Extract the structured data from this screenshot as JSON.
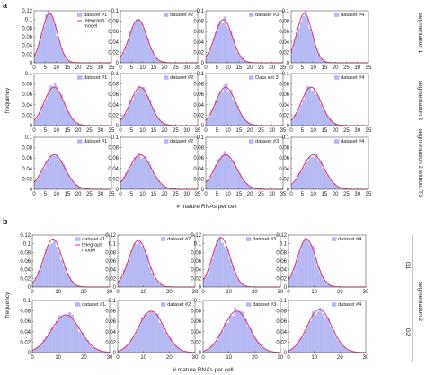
{
  "figure": {
    "panel_a_letter": "a",
    "panel_b_letter": "b",
    "ylabel": "frequency",
    "xlabel": "# mature RNAs per cell",
    "legend_model": "telegraph model",
    "legend_model_line1": "telegraph",
    "legend_model_line2": "model",
    "row_labels_a": [
      "segmentation 1",
      "segmentation 2",
      "segmentation 2 without TS"
    ],
    "row_labels_b": [
      "G1",
      "G2"
    ],
    "group_label_b": "segmentation 2",
    "colors": {
      "bars": "#b7b9f5",
      "bar_edge": "#9ea2ee",
      "model": "#d83a6c",
      "text": "#222222"
    }
  },
  "chart_data": {
    "type": "bar",
    "panels": [
      {
        "panel": "a",
        "row": 0,
        "col": 0,
        "label": "dataset #1",
        "mean": 7,
        "sd": 3.5,
        "ylim": [
          0,
          0.12
        ],
        "yticks": [
          "0",
          "0.02",
          "0.04",
          "0.06",
          "0.08",
          "0.1",
          "0.12"
        ],
        "show_model_legend": true
      },
      {
        "panel": "a",
        "row": 0,
        "col": 1,
        "label": "dataset #2",
        "mean": 8,
        "sd": 4,
        "ylim": [
          0,
          0.12
        ],
        "yticks": [
          "0",
          "0.02",
          "0.04",
          "0.06",
          "0.08",
          "0.1"
        ],
        "show_model_legend": false
      },
      {
        "panel": "a",
        "row": 0,
        "col": 2,
        "label": "dataset #3",
        "mean": 8,
        "sd": 4,
        "ylim": [
          0,
          0.12
        ],
        "yticks": [
          "0",
          "0.02",
          "0.04",
          "0.06",
          "0.08",
          "0.1"
        ],
        "show_model_legend": false
      },
      {
        "panel": "a",
        "row": 0,
        "col": 3,
        "label": "dataset #4",
        "mean": 6,
        "sd": 3.5,
        "ylim": [
          0,
          0.12
        ],
        "yticks": [
          "0",
          "0.02",
          "0.04",
          "0.06",
          "0.08",
          "0.1"
        ],
        "show_model_legend": false
      },
      {
        "panel": "a",
        "row": 1,
        "col": 0,
        "label": "dataset #1",
        "mean": 9,
        "sd": 4.5,
        "ylim": [
          0,
          0.12
        ],
        "yticks": [
          "0",
          "0.02",
          "0.04",
          "0.06",
          "0.08",
          "0.1"
        ],
        "show_model_legend": false
      },
      {
        "panel": "a",
        "row": 1,
        "col": 1,
        "label": "dataset #2",
        "mean": 9,
        "sd": 4.5,
        "ylim": [
          0,
          0.12
        ],
        "yticks": [
          "0",
          "0.02",
          "0.04",
          "0.06",
          "0.08",
          "0.1"
        ],
        "show_model_legend": false
      },
      {
        "panel": "a",
        "row": 1,
        "col": 2,
        "label": "Data set 3",
        "mean": 9,
        "sd": 4.5,
        "ylim": [
          0,
          0.12
        ],
        "yticks": [
          "0",
          "0.02",
          "0.04",
          "0.06",
          "0.08",
          "0.1"
        ],
        "show_model_legend": false
      },
      {
        "panel": "a",
        "row": 1,
        "col": 3,
        "label": "dataset #4",
        "mean": 9,
        "sd": 4.5,
        "ylim": [
          0,
          0.12
        ],
        "yticks": [
          "0",
          "0.02",
          "0.04",
          "0.06",
          "0.08",
          "0.1"
        ],
        "show_model_legend": false
      },
      {
        "panel": "a",
        "row": 2,
        "col": 0,
        "label": "dataset #1",
        "mean": 9,
        "sd": 5,
        "ylim": [
          0,
          0.12
        ],
        "yticks": [
          "0",
          "0.02",
          "0.04",
          "0.06",
          "0.08",
          "0.1"
        ],
        "show_model_legend": false
      },
      {
        "panel": "a",
        "row": 2,
        "col": 1,
        "label": "dataset #2",
        "mean": 9,
        "sd": 5,
        "ylim": [
          0,
          0.12
        ],
        "yticks": [
          "0",
          "0.02",
          "0.04",
          "0.06",
          "0.08",
          "0.1"
        ],
        "show_model_legend": false
      },
      {
        "panel": "a",
        "row": 2,
        "col": 2,
        "label": "dataset #3",
        "mean": 9,
        "sd": 5,
        "ylim": [
          0,
          0.12
        ],
        "yticks": [
          "0",
          "0.02",
          "0.04",
          "0.06",
          "0.08",
          "0.1"
        ],
        "show_model_legend": false
      },
      {
        "panel": "a",
        "row": 2,
        "col": 3,
        "label": "dataset #4",
        "mean": 10,
        "sd": 5,
        "ylim": [
          0,
          0.12
        ],
        "yticks": [
          "0",
          "0.02",
          "0.04",
          "0.06",
          "0.08",
          "0.1"
        ],
        "show_model_legend": false
      },
      {
        "panel": "b",
        "row": 0,
        "col": 0,
        "label": "dataset #1",
        "mean": 8,
        "sd": 3.6,
        "ylim": [
          0,
          0.12
        ],
        "yticks": [
          "0",
          "0.02",
          "0.04",
          "0.06",
          "0.08",
          "0.1",
          "0.12"
        ],
        "show_model_legend": true
      },
      {
        "panel": "b",
        "row": 0,
        "col": 1,
        "label": "dataset #2",
        "mean": 8,
        "sd": 3.7,
        "ylim": [
          0,
          0.12
        ],
        "yticks": [
          "0",
          "0.02",
          "0.04",
          "0.06",
          "0.08",
          "0.1",
          "0.12"
        ],
        "show_model_legend": false
      },
      {
        "panel": "b",
        "row": 0,
        "col": 2,
        "label": "dataset #3",
        "mean": 7,
        "sd": 3.5,
        "ylim": [
          0,
          0.12
        ],
        "yticks": [
          "0",
          "0.02",
          "0.04",
          "0.06",
          "0.08",
          "0.1",
          "0.12"
        ],
        "show_model_legend": false
      },
      {
        "panel": "b",
        "row": 0,
        "col": 3,
        "label": "dataset #4",
        "mean": 7,
        "sd": 3.6,
        "ylim": [
          0,
          0.12
        ],
        "yticks": [
          "0",
          "0.02",
          "0.04",
          "0.06",
          "0.08",
          "0.1",
          "0.12"
        ],
        "show_model_legend": false
      },
      {
        "panel": "b",
        "row": 1,
        "col": 0,
        "label": "dataset #1",
        "mean": 13,
        "sd": 5.5,
        "ylim": [
          0,
          0.1
        ],
        "yticks": [
          "0",
          "0.02",
          "0.04",
          "0.06",
          "0.08",
          "0.1"
        ],
        "show_model_legend": false
      },
      {
        "panel": "b",
        "row": 1,
        "col": 1,
        "label": "dataset #2",
        "mean": 13,
        "sd": 5,
        "ylim": [
          0,
          0.1
        ],
        "yticks": [
          "0",
          "0.02",
          "0.04",
          "0.06",
          "0.08",
          "0.1"
        ],
        "show_model_legend": false
      },
      {
        "panel": "b",
        "row": 1,
        "col": 2,
        "label": "dataset #3",
        "mean": 13,
        "sd": 5,
        "ylim": [
          0,
          0.1
        ],
        "yticks": [
          "0",
          "0.02",
          "0.04",
          "0.06",
          "0.08",
          "0.1"
        ],
        "show_model_legend": false
      },
      {
        "panel": "b",
        "row": 1,
        "col": 3,
        "label": "dataset #4",
        "mean": 12,
        "sd": 4.8,
        "ylim": [
          0,
          0.1
        ],
        "yticks": [
          "0",
          "0.02",
          "0.04",
          "0.06",
          "0.08",
          "0.1"
        ],
        "show_model_legend": false
      }
    ],
    "xlim_a": [
      0,
      35
    ],
    "xticks_a": [
      "0",
      "5",
      "10",
      "15",
      "20",
      "25",
      "30",
      "35"
    ],
    "xlim_b": [
      0,
      30
    ],
    "xticks_b": [
      "0",
      "10",
      "20",
      "30"
    ]
  }
}
